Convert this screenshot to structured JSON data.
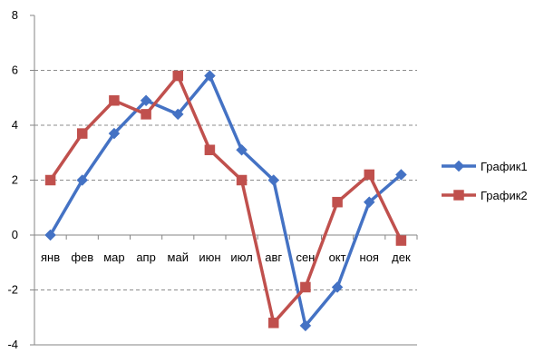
{
  "chart_data": {
    "type": "line",
    "categories": [
      "янв",
      "фев",
      "мар",
      "апр",
      "май",
      "июн",
      "июл",
      "авг",
      "сен",
      "окт",
      "ноя",
      "дек"
    ],
    "series": [
      {
        "name": "График1",
        "color": "#4472c4",
        "marker": "diamond",
        "values": [
          0,
          2,
          3.7,
          4.9,
          4.4,
          5.8,
          3.1,
          2,
          -3.3,
          -1.9,
          1.2,
          2.2
        ]
      },
      {
        "name": "График2",
        "color": "#c0504d",
        "marker": "square",
        "values": [
          2,
          3.7,
          4.9,
          4.4,
          5.8,
          3.1,
          2,
          -3.2,
          -1.9,
          1.2,
          2.2,
          -0.2
        ]
      }
    ],
    "ylim": [
      -4,
      8
    ],
    "yticks": [
      "-4",
      "-2",
      "0",
      "2",
      "4",
      "6",
      "8"
    ],
    "grid": "horizontal dashed",
    "legend_position": "right"
  }
}
